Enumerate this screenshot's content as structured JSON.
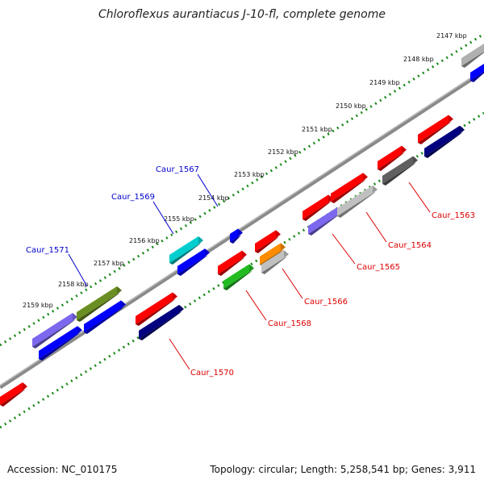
{
  "title": "Chloroflexus aurantiacus J-10-fl, complete genome",
  "footer": {
    "accession": "Accession: NC_010175",
    "topology": "Topology: circular; Length: 5,258,541 bp; Genes: 3,911"
  },
  "colors": {
    "backbone": "#8a8a8a",
    "tick_dots": "#1a8a1a",
    "label_top": "#0000cc",
    "label_bottom": "#dd0000"
  },
  "kbp_ticks": [
    {
      "label": "2147 kbp"
    },
    {
      "label": "2148 kbp"
    },
    {
      "label": "2149 kbp"
    },
    {
      "label": "2150 kbp"
    },
    {
      "label": "2151 kbp"
    },
    {
      "label": "2152 kbp"
    },
    {
      "label": "2153 kbp"
    },
    {
      "label": "2154 kbp"
    },
    {
      "label": "2155 kbp"
    },
    {
      "label": "2156 kbp"
    },
    {
      "label": "2157 kbp"
    },
    {
      "label": "2158 kbp"
    },
    {
      "label": "2159 kbp"
    }
  ],
  "gene_labels": [
    {
      "text": "Caur_1571"
    },
    {
      "text": "Caur_1569"
    },
    {
      "text": "Caur_1567"
    },
    {
      "text": "Caur_1570"
    },
    {
      "text": "Caur_1568"
    },
    {
      "text": "Caur_1566"
    },
    {
      "text": "Caur_1565"
    },
    {
      "text": "Caur_1564"
    },
    {
      "text": "Caur_1563"
    }
  ]
}
